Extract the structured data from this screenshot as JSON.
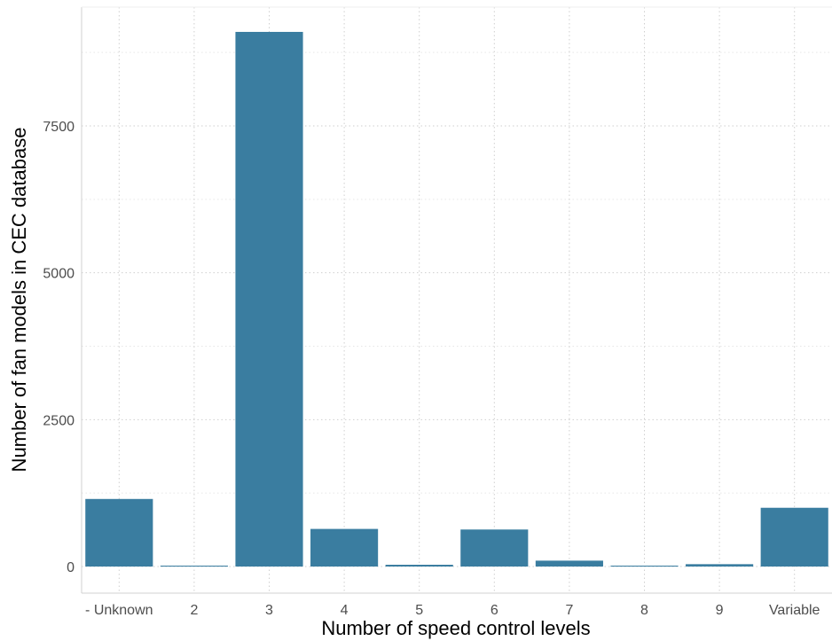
{
  "chart_data": {
    "type": "bar",
    "title": "",
    "xlabel": "Number of speed control levels",
    "ylabel": "Number of fan models in CEC database",
    "categories": [
      "- Unknown",
      "2",
      "3",
      "4",
      "5",
      "6",
      "7",
      "8",
      "9",
      "Variable"
    ],
    "values": [
      1150,
      10,
      9100,
      640,
      30,
      630,
      100,
      10,
      40,
      1000
    ],
    "ylim": [
      0,
      9500
    ],
    "yticks": [
      "0",
      "2500",
      "5000",
      "7500"
    ],
    "ytick_values": [
      0,
      2500,
      5000,
      7500
    ],
    "grid": true,
    "bar_color": "#3A7DA0",
    "grid_color": "#CFCFCF",
    "axis_color": "#D0D0D0"
  }
}
